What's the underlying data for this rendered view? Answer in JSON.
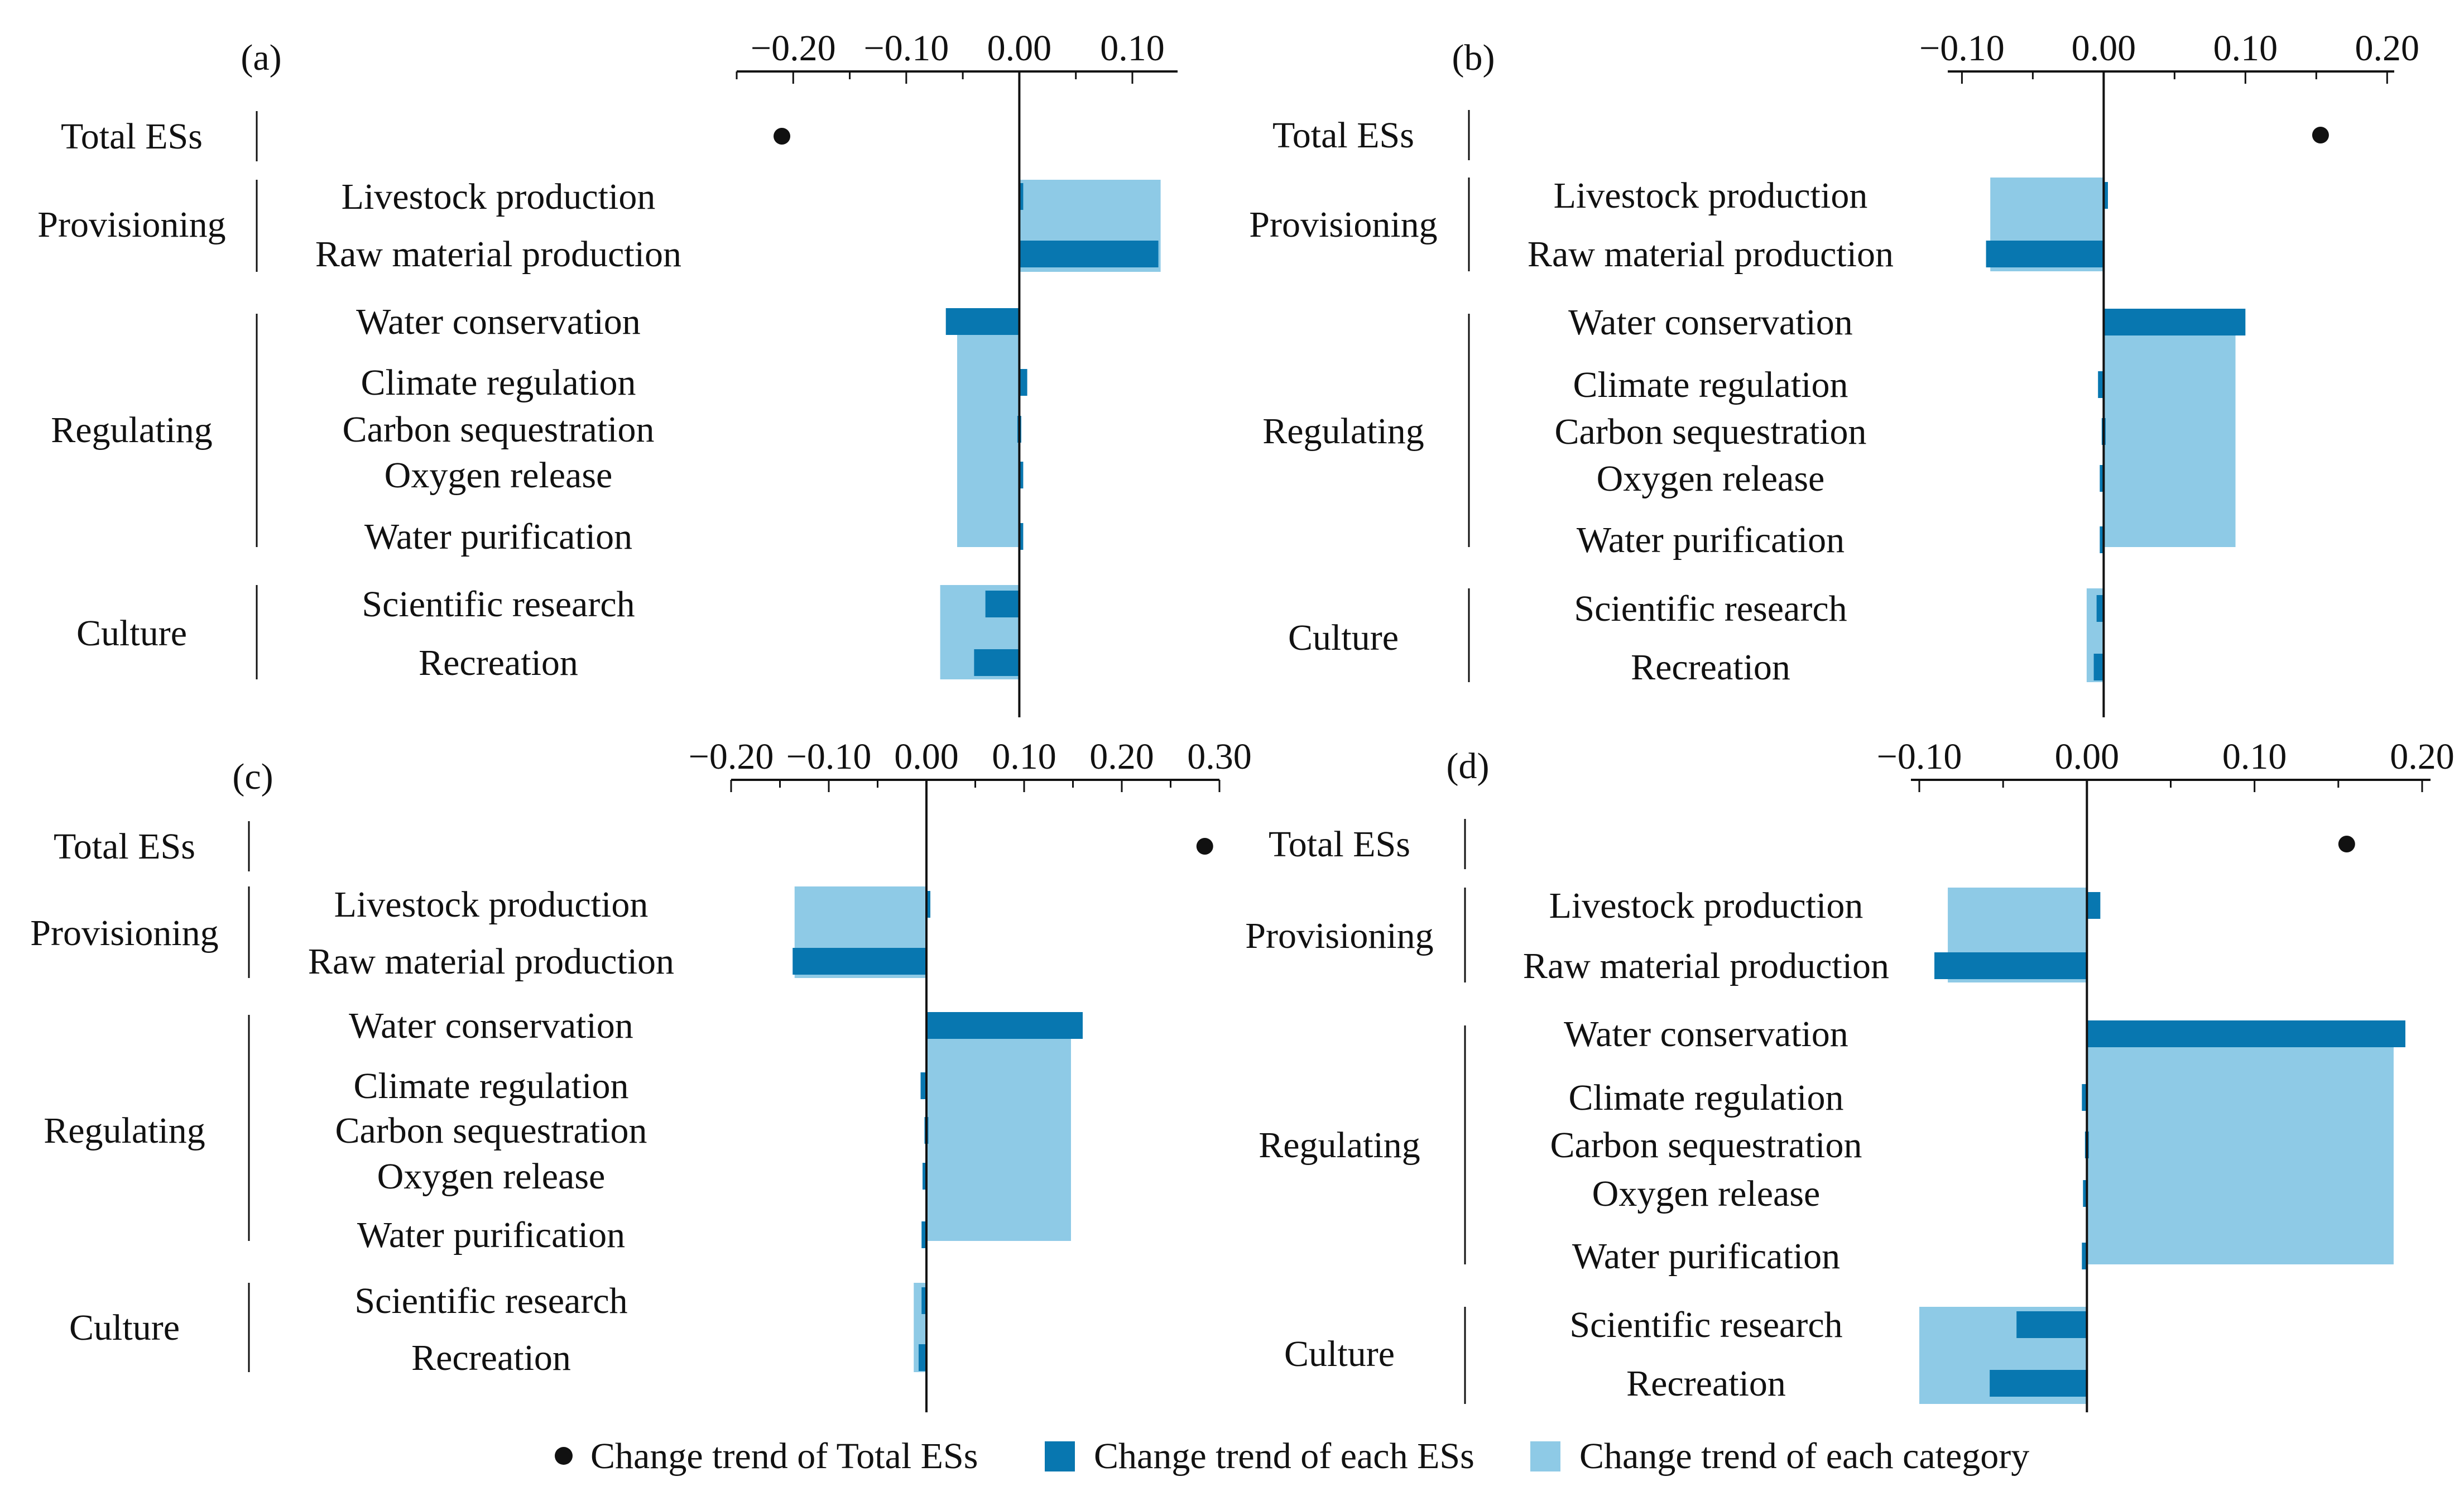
{
  "colors": {
    "item_bar": "#0877b0",
    "category_bar": "#8ecae6",
    "total_dot": "#111111",
    "axis": "#111111"
  },
  "legend": {
    "total": "Change trend of Total ESs",
    "item": "Change trend of each ESs",
    "category": "Change trend of each category"
  },
  "chart_data": [
    {
      "type": "bar",
      "panel_label": "(a)",
      "xlim": [
        -0.25,
        0.14
      ],
      "ticks": [
        -0.2,
        -0.1,
        0.0,
        0.1
      ],
      "tick_labels": [
        "−0.20",
        "−0.10",
        "0.00",
        "0.10"
      ],
      "total": {
        "label": "Total ESs",
        "value": -0.21
      },
      "categories": [
        {
          "name": "Provisioning",
          "value": 0.125,
          "items": [
            {
              "name": "Livestock production",
              "value": 0.002
            },
            {
              "name": "Raw material production",
              "value": 0.123
            }
          ]
        },
        {
          "name": "Regulating",
          "value": -0.055,
          "items": [
            {
              "name": "Water conservation",
              "value": -0.065
            },
            {
              "name": "Climate regulation",
              "value": 0.007
            },
            {
              "name": "Carbon sequestration",
              "value": 0.0
            },
            {
              "name": "Oxygen release",
              "value": 0.002
            },
            {
              "name": "Water purification",
              "value": 0.002
            }
          ]
        },
        {
          "name": "Culture",
          "value": -0.07,
          "items": [
            {
              "name": "Scientific research",
              "value": -0.03
            },
            {
              "name": "Recreation",
              "value": -0.04
            }
          ]
        }
      ]
    },
    {
      "type": "bar",
      "panel_label": "(b)",
      "xlim": [
        -0.11,
        0.205
      ],
      "ticks": [
        -0.1,
        0.0,
        0.1,
        0.2
      ],
      "tick_labels": [
        "−0.10",
        "0.00",
        "0.10",
        "0.20"
      ],
      "total": {
        "label": "Total ESs",
        "value": 0.153
      },
      "categories": [
        {
          "name": "Provisioning",
          "value": -0.08,
          "items": [
            {
              "name": "Livestock production",
              "value": 0.003
            },
            {
              "name": "Raw material production",
              "value": -0.083
            }
          ]
        },
        {
          "name": "Regulating",
          "value": 0.093,
          "items": [
            {
              "name": "Water conservation",
              "value": 0.1
            },
            {
              "name": "Climate regulation",
              "value": -0.004
            },
            {
              "name": "Carbon sequestration",
              "value": 0.0
            },
            {
              "name": "Oxygen release",
              "value": -0.001
            },
            {
              "name": "Water purification",
              "value": -0.002
            }
          ]
        },
        {
          "name": "Culture",
          "value": -0.012,
          "items": [
            {
              "name": "Scientific research",
              "value": -0.005
            },
            {
              "name": "Recreation",
              "value": -0.007
            }
          ]
        }
      ]
    },
    {
      "type": "bar",
      "panel_label": "(c)",
      "xlim": [
        -0.2,
        0.3
      ],
      "ticks": [
        -0.2,
        -0.1,
        0.0,
        0.1,
        0.2,
        0.3
      ],
      "tick_labels": [
        "−0.20",
        "−0.10",
        "0.00",
        "0.10",
        "0.20",
        "0.30"
      ],
      "total": {
        "label": "Total ESs",
        "value": 0.285
      },
      "categories": [
        {
          "name": "Provisioning",
          "value": -0.135,
          "items": [
            {
              "name": "Livestock production",
              "value": 0.002
            },
            {
              "name": "Raw material production",
              "value": -0.137
            }
          ]
        },
        {
          "name": "Regulating",
          "value": 0.148,
          "items": [
            {
              "name": "Water conservation",
              "value": 0.16
            },
            {
              "name": "Climate regulation",
              "value": -0.006
            },
            {
              "name": "Carbon sequestration",
              "value": 0.0
            },
            {
              "name": "Oxygen release",
              "value": -0.001
            },
            {
              "name": "Water purification",
              "value": -0.005
            }
          ]
        },
        {
          "name": "Culture",
          "value": -0.013,
          "items": [
            {
              "name": "Scientific research",
              "value": -0.005
            },
            {
              "name": "Recreation",
              "value": -0.008
            }
          ]
        }
      ]
    },
    {
      "type": "bar",
      "panel_label": "(d)",
      "xlim": [
        -0.105,
        0.205
      ],
      "ticks": [
        -0.1,
        0.0,
        0.1,
        0.2
      ],
      "tick_labels": [
        "−0.10",
        "0.00",
        "0.10",
        "0.20"
      ],
      "total": {
        "label": "Total ESs",
        "value": 0.155
      },
      "categories": [
        {
          "name": "Provisioning",
          "value": -0.083,
          "items": [
            {
              "name": "Livestock production",
              "value": 0.008
            },
            {
              "name": "Raw material production",
              "value": -0.091
            }
          ]
        },
        {
          "name": "Regulating",
          "value": 0.183,
          "items": [
            {
              "name": "Water conservation",
              "value": 0.19
            },
            {
              "name": "Climate regulation",
              "value": -0.003
            },
            {
              "name": "Carbon sequestration",
              "value": 0.0
            },
            {
              "name": "Oxygen release",
              "value": -0.001
            },
            {
              "name": "Water purification",
              "value": -0.003
            }
          ]
        },
        {
          "name": "Culture",
          "value": -0.1,
          "items": [
            {
              "name": "Scientific research",
              "value": -0.042
            },
            {
              "name": "Recreation",
              "value": -0.058
            }
          ]
        }
      ]
    }
  ]
}
